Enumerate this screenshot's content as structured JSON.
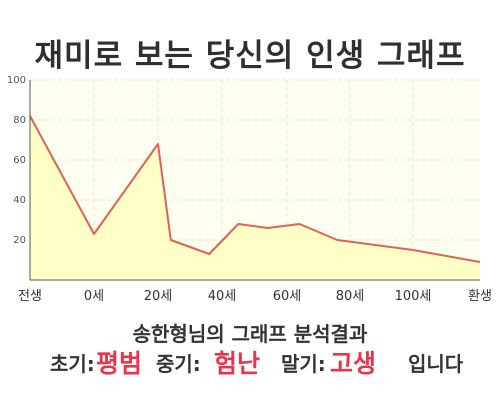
{
  "title": "재미로 보는 당신의 인생 그래프",
  "subtitle": "송한형님의 그래프 분석결과",
  "summary": {
    "early_label": "초기:",
    "early_value": "평범",
    "middle_label": "중기:",
    "middle_value": "험난",
    "late_label": "말기:",
    "late_value": "고생",
    "ending": "입니다"
  },
  "colors": {
    "line": "#e0605a",
    "fill": "#ffffc6",
    "plot_background": "#fffff0",
    "grid": "#e6e6d2",
    "highlight_text": "#e8344d"
  },
  "chart_data": {
    "type": "area",
    "title": "",
    "xlabel": "",
    "ylabel": "",
    "x_ticks": [
      "전생",
      "0세",
      "20세",
      "40세",
      "60세",
      "80세",
      "100세",
      "환생"
    ],
    "y_ticks": [
      "20",
      "40",
      "60",
      "80",
      "100"
    ],
    "ylim": [
      0,
      100
    ],
    "grid": true,
    "series": [
      {
        "points": [
          {
            "x": "전생",
            "y": 82
          },
          {
            "x": "0세",
            "y": 23
          },
          {
            "x": "20세",
            "y": 68
          },
          {
            "x": "24세",
            "y": 20
          },
          {
            "x": "36세",
            "y": 13
          },
          {
            "x": "45세",
            "y": 28
          },
          {
            "x": "54세",
            "y": 26
          },
          {
            "x": "64세",
            "y": 28
          },
          {
            "x": "76세",
            "y": 20
          },
          {
            "x": "100세",
            "y": 15
          },
          {
            "x": "환생",
            "y": 9
          }
        ]
      }
    ]
  }
}
